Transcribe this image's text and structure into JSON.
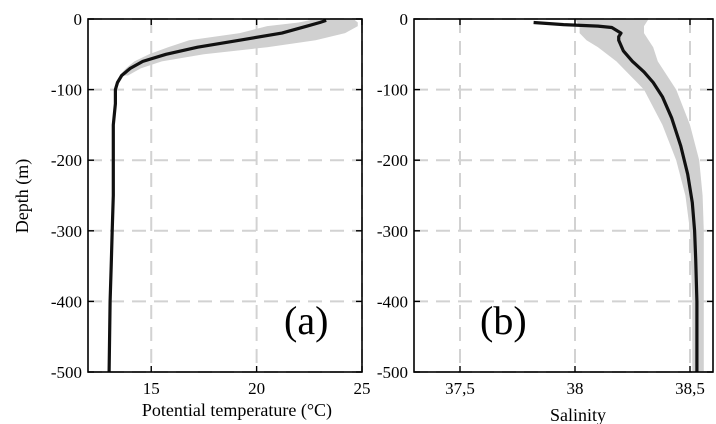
{
  "chart_data": [
    {
      "type": "line",
      "panel_label": "(a)",
      "xlabel": "Potential temperature (°C)",
      "ylabel": "Depth (m)",
      "xlim": [
        12,
        25
      ],
      "ylim": [
        -500,
        0
      ],
      "xticks": [
        15,
        20,
        25
      ],
      "yticks": [
        0,
        -100,
        -200,
        -300,
        -400,
        -500
      ],
      "grid": true,
      "series": [
        {
          "role": "mean",
          "x": [
            23.3,
            23.0,
            22.4,
            21.2,
            19.2,
            17.2,
            15.7,
            14.6,
            14.0,
            13.6,
            13.4,
            13.3,
            13.3,
            13.2,
            13.2,
            13.2,
            13.15,
            13.1,
            13.05,
            13.0
          ],
          "y": [
            -2,
            -5,
            -10,
            -20,
            -30,
            -40,
            -50,
            -60,
            -70,
            -80,
            -90,
            -100,
            -120,
            -150,
            -200,
            -250,
            -300,
            -350,
            -400,
            -500
          ]
        },
        {
          "role": "envelope",
          "y": [
            0,
            -5,
            -10,
            -20,
            -30,
            -40,
            -50,
            -60,
            -70,
            -80
          ],
          "low": [
            22.8,
            22.0,
            20.5,
            19.2,
            16.8,
            15.8,
            14.9,
            14.2,
            13.8,
            13.5
          ],
          "high": [
            24.6,
            24.8,
            24.8,
            24.2,
            22.8,
            20.5,
            17.5,
            15.5,
            14.5,
            13.9
          ]
        }
      ]
    },
    {
      "type": "line",
      "panel_label": "(b)",
      "xlabel": "Salinity",
      "ylabel": "",
      "xlim": [
        37.3,
        38.6
      ],
      "ylim": [
        -500,
        0
      ],
      "xticks": [
        37.5,
        38,
        38.5
      ],
      "xtick_labels": [
        "37,5",
        "38",
        "38,5"
      ],
      "yticks": [
        0,
        -100,
        -200,
        -300,
        -400,
        -500
      ],
      "grid": true,
      "series": [
        {
          "role": "mean",
          "x": [
            37.82,
            37.95,
            38.1,
            38.16,
            38.2,
            38.19,
            38.19,
            38.21,
            38.25,
            38.3,
            38.34,
            38.38,
            38.42,
            38.46,
            38.49,
            38.51,
            38.52,
            38.525,
            38.53,
            38.53,
            38.53
          ],
          "y": [
            -5,
            -8,
            -10,
            -12,
            -20,
            -25,
            -30,
            -45,
            -60,
            -75,
            -90,
            -110,
            -140,
            -180,
            -220,
            -260,
            -300,
            -340,
            -400,
            -450,
            -500
          ]
        },
        {
          "role": "envelope",
          "y": [
            0,
            -10,
            -20,
            -30,
            -40,
            -60,
            -80,
            -100,
            -150,
            -200,
            -250,
            -300,
            -400,
            -500
          ],
          "low": [
            38.0,
            38.02,
            38.02,
            38.05,
            38.1,
            38.18,
            38.24,
            38.3,
            38.38,
            38.44,
            38.48,
            38.5,
            38.51,
            38.51
          ],
          "high": [
            38.32,
            38.3,
            38.3,
            38.32,
            38.34,
            38.36,
            38.4,
            38.44,
            38.5,
            38.54,
            38.555,
            38.56,
            38.56,
            38.56
          ]
        }
      ]
    }
  ]
}
